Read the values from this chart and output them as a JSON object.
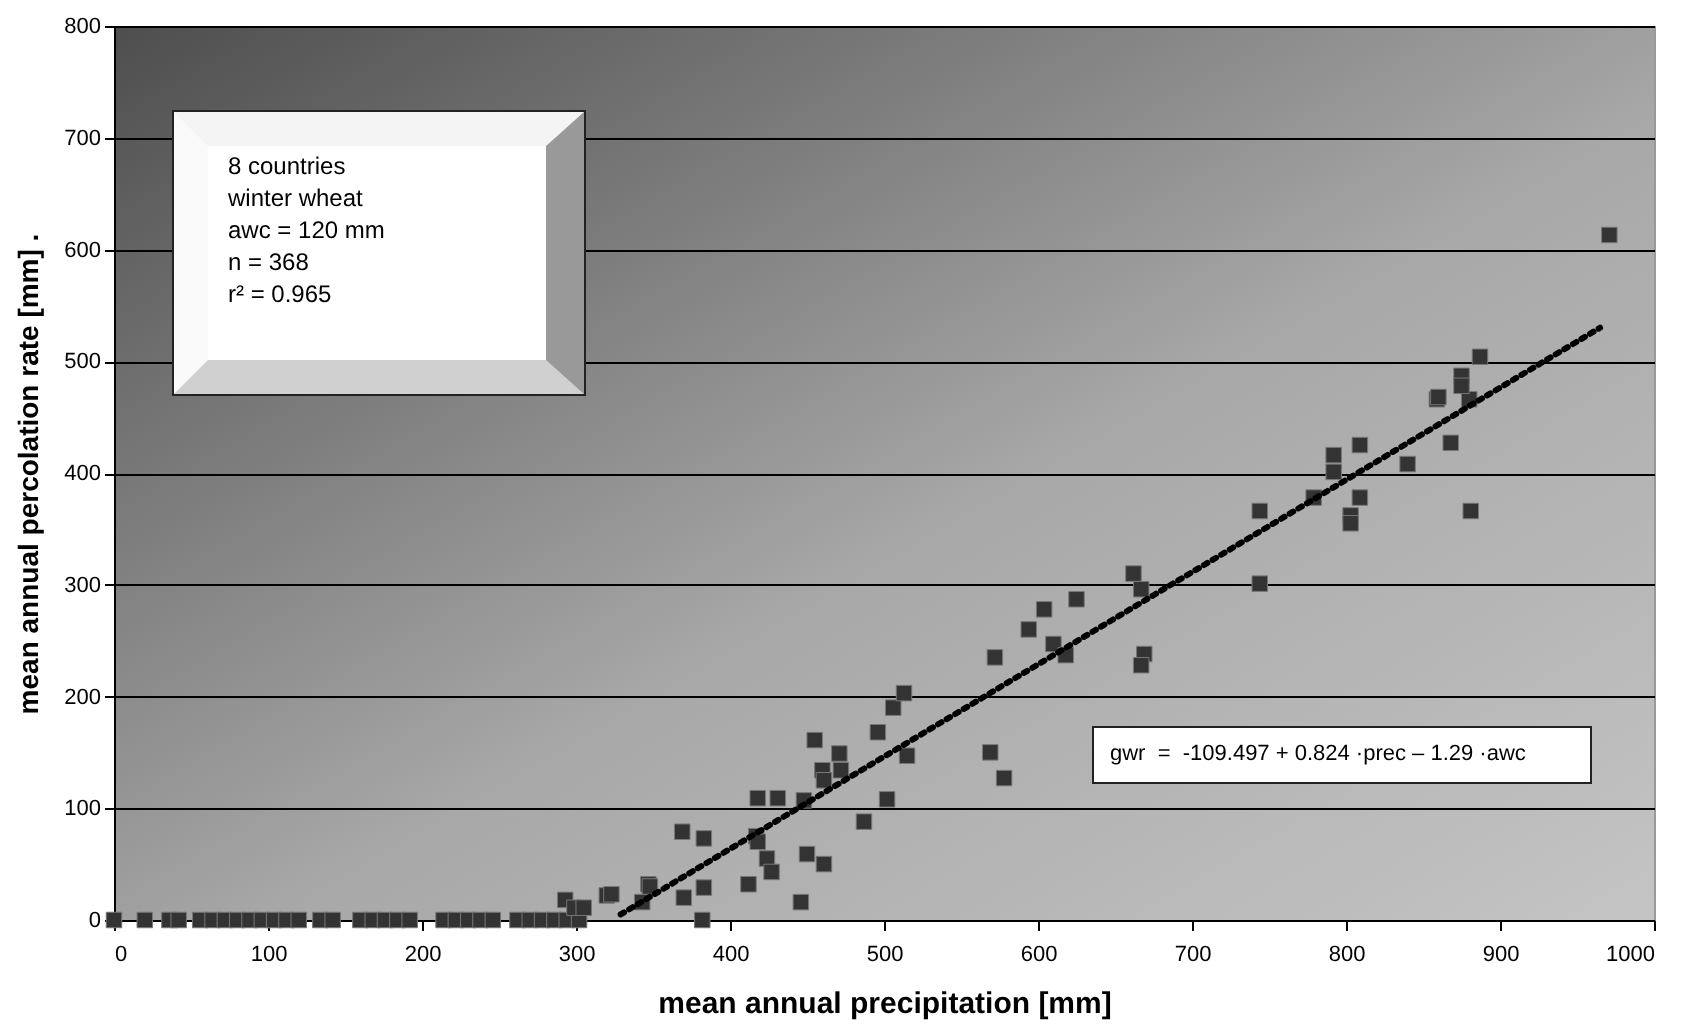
{
  "chart_data": {
    "type": "scatter",
    "xlabel": "mean annual precipitation [mm]",
    "ylabel": "mean annual percolation rate [mm]   .",
    "xlim": [
      0,
      1000
    ],
    "ylim": [
      0,
      800
    ],
    "xticks": [
      0,
      100,
      200,
      300,
      400,
      500,
      600,
      700,
      800,
      900,
      1000
    ],
    "yticks": [
      0,
      100,
      200,
      300,
      400,
      500,
      600,
      700,
      800
    ],
    "grid": "y",
    "annotations": [
      "8 countries",
      "winter wheat",
      "awc = 120 mm",
      "n = 368",
      "r² = 0.965",
      "gwr  =  -109.497 + 0.824 ·prec – 1.29 ·awc"
    ],
    "series": [
      {
        "type": "scatter",
        "marker": "square",
        "color": "#333333",
        "x": [
          0,
          20,
          36,
          42,
          56,
          64,
          72,
          80,
          88,
          96,
          104,
          112,
          120,
          134,
          142,
          160,
          168,
          176,
          184,
          192,
          214,
          222,
          230,
          238,
          246,
          262,
          270,
          278,
          286,
          294,
          302,
          293,
          299,
          305,
          320,
          323,
          343,
          347,
          348,
          369,
          370,
          383,
          383,
          382,
          412,
          418,
          417,
          418,
          424,
          427,
          431,
          446,
          450,
          461,
          448,
          472,
          455,
          460,
          461,
          471,
          487,
          502,
          496,
          506,
          513,
          515,
          569,
          578,
          572,
          594,
          604,
          610,
          618,
          625,
          662,
          667,
          669,
          667,
          744,
          744,
          779,
          792,
          792,
          809,
          809,
          803,
          803,
          840,
          868,
          881,
          859,
          880,
          971,
          887,
          875,
          875,
          860
        ],
        "values": [
          0,
          0,
          0,
          0,
          0,
          0,
          0,
          0,
          0,
          0,
          0,
          0,
          0,
          0,
          0,
          0,
          0,
          0,
          0,
          0,
          0,
          0,
          0,
          0,
          0,
          0,
          0,
          0,
          0,
          0,
          0,
          18,
          11,
          11,
          22,
          23,
          16,
          32,
          30,
          79,
          20,
          73,
          29,
          0,
          32,
          109,
          75,
          70,
          55,
          43,
          109,
          16,
          59,
          50,
          107,
          134,
          161,
          134,
          125,
          149,
          88,
          108,
          168,
          190,
          203,
          147,
          150,
          127,
          235,
          260,
          278,
          247,
          237,
          287,
          310,
          296,
          238,
          228,
          366,
          301,
          378,
          416,
          401,
          425,
          378,
          362,
          355,
          408,
          427,
          366,
          466,
          466,
          613,
          504,
          487,
          478,
          468
        ]
      },
      {
        "type": "line",
        "line_style": "dotted",
        "color": "#000000",
        "x": [
          329,
          965
        ],
        "values": [
          5,
          530
        ]
      }
    ]
  }
}
